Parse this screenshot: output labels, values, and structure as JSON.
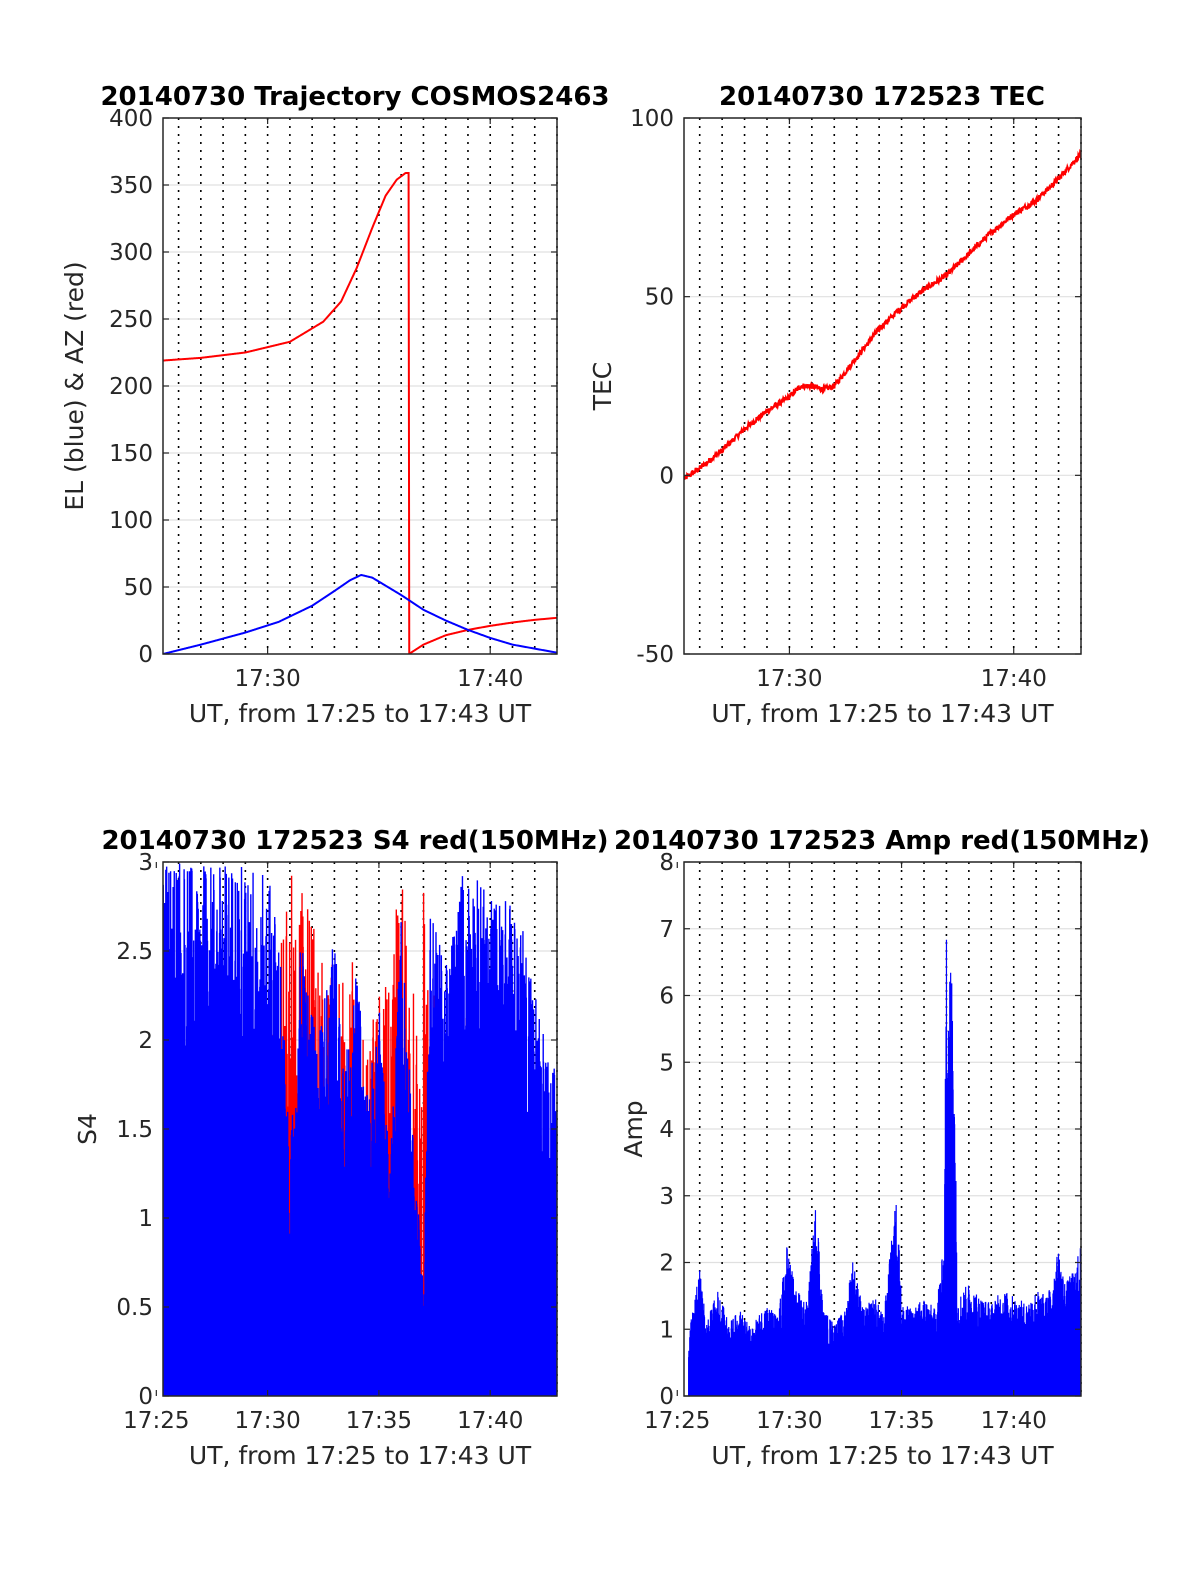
{
  "chart_data": [
    {
      "type": "line",
      "title": "20140730 Trajectory COSMOS2463",
      "xlabel": "UT, from 17:25 to 17:43 UT",
      "ylabel": "EL (blue) & AZ (red)",
      "x_units": "minutes after 17:00 UT",
      "xlim": [
        25.3,
        43
      ],
      "ylim": [
        0,
        400
      ],
      "xticks": [
        30,
        40
      ],
      "xtick_labels": [
        "17:30",
        "17:40"
      ],
      "yticks": [
        0,
        50,
        100,
        150,
        200,
        250,
        300,
        350,
        400
      ],
      "ytick_labels": [
        "0",
        "50",
        "100",
        "150",
        "200",
        "250",
        "300",
        "350",
        "400"
      ],
      "grid": {
        "major_y": true,
        "minor_x_dotted_every_minute": true
      },
      "series": [
        {
          "color": "#ff0000",
          "x": [
            25.3,
            27,
            29,
            31,
            32.5,
            33.3,
            34,
            34.7,
            35.3,
            35.8,
            36.2,
            36.3,
            36.35,
            37,
            38,
            39,
            40,
            41,
            42,
            43
          ],
          "y": [
            219,
            221,
            225,
            233,
            248,
            263,
            288,
            318,
            342,
            354,
            359,
            359,
            0,
            7,
            14,
            18,
            21,
            23.5,
            25.5,
            27
          ]
        },
        {
          "color": "#0000ff",
          "x": [
            25.3,
            27,
            29,
            30.5,
            32,
            33,
            33.7,
            34.2,
            34.7,
            35.3,
            36,
            37,
            38,
            39,
            40,
            41,
            42,
            43
          ],
          "y": [
            0,
            7,
            16,
            24,
            36,
            47,
            55,
            59,
            57,
            51,
            44,
            33,
            25,
            18,
            12,
            7,
            4,
            1
          ]
        }
      ]
    },
    {
      "type": "line",
      "title": "20140730 172523 TEC",
      "xlabel": "UT, from 17:25 to 17:43 UT",
      "ylabel": "TEC",
      "x_units": "minutes after 17:00 UT",
      "xlim": [
        25.3,
        43
      ],
      "ylim": [
        -50,
        100
      ],
      "xticks": [
        30,
        40
      ],
      "xtick_labels": [
        "17:30",
        "17:40"
      ],
      "yticks": [
        -50,
        0,
        50,
        100
      ],
      "ytick_labels": [
        "-50",
        "0",
        "50",
        "100"
      ],
      "grid": {
        "major_y": true,
        "minor_x_dotted_every_minute": true
      },
      "series": [
        {
          "color": "#ff0000",
          "x": [
            25.3,
            26,
            27,
            28,
            29,
            30,
            30.5,
            31,
            31.5,
            32,
            33,
            34,
            35,
            36,
            37,
            38,
            39,
            40,
            41,
            42,
            43
          ],
          "y": [
            -1,
            2,
            7,
            13,
            18,
            22,
            25,
            25,
            24,
            25,
            33,
            41,
            47,
            52,
            56,
            62,
            68,
            73,
            77,
            83,
            90
          ]
        }
      ]
    },
    {
      "type": "area",
      "title": "20140730 172523 S4 red(150MHz)",
      "xlabel": "UT, from 17:25 to 17:43 UT",
      "ylabel": "S4",
      "x_units": "minutes after 17:00 UT",
      "xlim": [
        25.3,
        43
      ],
      "ylim": [
        0,
        3
      ],
      "xticks": [
        25,
        30,
        35,
        40
      ],
      "xtick_labels": [
        "17:25",
        "17:30",
        "17:35",
        "17:40"
      ],
      "yticks": [
        0,
        0.5,
        1,
        1.5,
        2,
        2.5,
        3
      ],
      "ytick_labels": [
        "0",
        "0.5",
        "1",
        "1.5",
        "2",
        "2.5",
        "3"
      ],
      "grid": {
        "major_y": true,
        "minor_x_dotted_every_minute": true
      },
      "series": [
        {
          "color": "#ff0000",
          "x": [
            25.3,
            29.6,
            29.9,
            31.0,
            31.3,
            32.0,
            32.5,
            33.3,
            34.0,
            34.5,
            35.0,
            35.5,
            36.0,
            36.5,
            37.0,
            37.3,
            38.0,
            38.7,
            39.5,
            40.2,
            41.0,
            41.7,
            42.5,
            43.0
          ],
          "y": [
            0,
            0,
            2.05,
            3.0,
            2.95,
            2.8,
            2.6,
            2.3,
            2.5,
            1.9,
            2.4,
            2.6,
            3.0,
            2.2,
            3.0,
            2.7,
            1.8,
            2.5,
            2.2,
            2.0,
            1.8,
            1.8,
            1.7,
            1.7
          ]
        },
        {
          "color": "#0000ff",
          "x": [
            25.3,
            27.0,
            29.0,
            30.0,
            30.6,
            31.0,
            31.5,
            32.2,
            33.0,
            33.5,
            34.0,
            34.5,
            35.0,
            35.5,
            36.0,
            36.5,
            37.0,
            37.3,
            38.0,
            38.8,
            39.5,
            40.2,
            41.0,
            41.8,
            42.5,
            43.0
          ],
          "y": [
            3.0,
            3.0,
            3.0,
            3.0,
            2.5,
            1.3,
            2.6,
            2.0,
            2.6,
            1.9,
            2.4,
            1.7,
            2.2,
            1.3,
            2.7,
            1.6,
            0.6,
            2.8,
            2.4,
            3.0,
            2.9,
            2.8,
            2.8,
            2.5,
            2.0,
            1.8
          ]
        }
      ]
    },
    {
      "type": "area",
      "title": "20140730 172523 Amp red(150MHz)",
      "xlabel": "UT, from 17:25 to 17:43 UT",
      "ylabel": "Amp",
      "x_units": "minutes after 17:00 UT",
      "xlim": [
        25.3,
        43
      ],
      "ylim": [
        0,
        8
      ],
      "xticks": [
        25,
        30,
        35,
        40
      ],
      "xtick_labels": [
        "17:25",
        "17:30",
        "17:35",
        "17:40"
      ],
      "yticks": [
        0,
        1,
        2,
        3,
        4,
        5,
        6,
        7,
        8
      ],
      "ytick_labels": [
        "0",
        "1",
        "2",
        "3",
        "4",
        "5",
        "6",
        "7",
        "8"
      ],
      "grid": {
        "major_y": true,
        "minor_x_dotted_every_minute": true
      },
      "series": [
        {
          "color": "#0000ff",
          "x": [
            25.3,
            25.5,
            26.0,
            26.3,
            26.8,
            27.3,
            27.8,
            28.3,
            28.9,
            29.5,
            29.9,
            30.3,
            30.8,
            31.1,
            31.2,
            31.5,
            32.0,
            32.5,
            32.8,
            33.3,
            33.8,
            34.2,
            34.8,
            35.0,
            35.5,
            36.0,
            36.5,
            36.9,
            37.0,
            37.1,
            37.3,
            37.5,
            38.0,
            38.5,
            39.0,
            39.5,
            40.0,
            40.5,
            41.0,
            41.5,
            42.0,
            42.3,
            42.7,
            43.0
          ],
          "y": [
            0,
            0.9,
            1.9,
            1.1,
            1.6,
            1.1,
            1.3,
            1.0,
            1.4,
            1.2,
            2.3,
            1.6,
            1.4,
            2.6,
            3.05,
            1.3,
            1.1,
            1.3,
            2.1,
            1.3,
            1.5,
            1.2,
            3.15,
            1.4,
            1.3,
            1.5,
            1.3,
            2.3,
            7.1,
            6.8,
            6.3,
            1.5,
            1.7,
            1.5,
            1.4,
            1.6,
            1.5,
            1.4,
            1.6,
            1.5,
            2.2,
            1.7,
            1.9,
            2.3
          ]
        }
      ]
    }
  ]
}
